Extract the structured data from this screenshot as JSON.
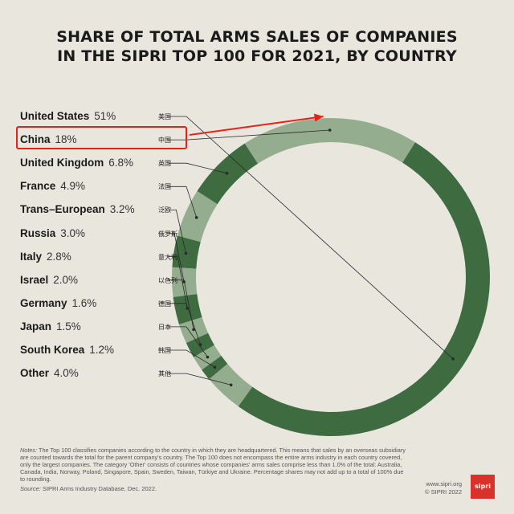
{
  "title_lines": [
    "SHARE OF TOTAL ARMS SALES OF COMPANIES",
    "IN THE SIPRI TOP 100 FOR 2021, BY COUNTRY"
  ],
  "colors": {
    "dark": "#3e6b40",
    "light": "#93ad8e",
    "highlight": "#e8201a",
    "background": "#e9e6de"
  },
  "chart_data": {
    "type": "pie",
    "style": "donut",
    "title": "SHARE OF TOTAL ARMS SALES OF COMPANIES IN THE SIPRI TOP 100 FOR 2021, BY COUNTRY",
    "legend": "left",
    "slices": [
      {
        "label": "United States",
        "value": 51.0,
        "value_label": "51%",
        "label_zh": "美国",
        "color": "#3e6b40"
      },
      {
        "label": "China",
        "value": 18.0,
        "value_label": "18%",
        "label_zh": "中国",
        "color": "#93ad8e"
      },
      {
        "label": "United Kingdom",
        "value": 6.8,
        "value_label": "6.8%",
        "label_zh": "英国",
        "color": "#3e6b40"
      },
      {
        "label": "France",
        "value": 4.9,
        "value_label": "4.9%",
        "label_zh": "法国",
        "color": "#93ad8e"
      },
      {
        "label": "Trans–European",
        "value": 3.2,
        "value_label": "3.2%",
        "label_zh": "泛欧",
        "color": "#3e6b40"
      },
      {
        "label": "Russia",
        "value": 3.0,
        "value_label": "3.0%",
        "label_zh": "俄罗斯",
        "color": "#93ad8e"
      },
      {
        "label": "Italy",
        "value": 2.8,
        "value_label": "2.8%",
        "label_zh": "意大利",
        "color": "#3e6b40"
      },
      {
        "label": "Israel",
        "value": 2.0,
        "value_label": "2.0%",
        "label_zh": "以色列",
        "color": "#93ad8e"
      },
      {
        "label": "Germany",
        "value": 1.6,
        "value_label": "1.6%",
        "label_zh": "德国",
        "color": "#3e6b40"
      },
      {
        "label": "Japan",
        "value": 1.5,
        "value_label": "1.5%",
        "label_zh": "日本",
        "color": "#93ad8e"
      },
      {
        "label": "South Korea",
        "value": 1.2,
        "value_label": "1.2%",
        "label_zh": "韩国",
        "color": "#3e6b40"
      },
      {
        "label": "Other",
        "value": 4.0,
        "value_label": "4.0%",
        "label_zh": "其他",
        "color": "#93ad8e"
      }
    ]
  },
  "notes_label": "Notes:",
  "notes_text": "The Top 100 classifies companies according to the country in which they are headquartered. This means that sales by an overseas subsidiary are counted towards the total for the parent company's country. The Top 100 does not encompass the entire arms industry in each country covered, only the largest companies. The category 'Other' consists of countries whose companies' arms sales comprise less than 1.0% of the total: Australia, Canada, India, Norway, Poland, Singapore, Spain, Sweden, Taiwan, Türkiye and Ukraine. Percentage shares may not add up to a total of 100% due to rounding.",
  "source_label": "Source:",
  "source_text": "SIPRI Arms Industry Database, Dec. 2022.",
  "credit_url": "www.sipri.org",
  "credit_copyright": "© SIPRI 2022",
  "logo_text": "sipri"
}
